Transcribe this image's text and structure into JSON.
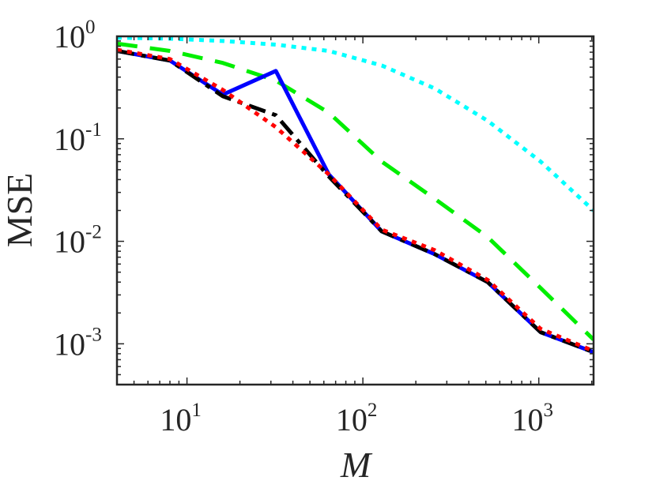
{
  "chart_data": {
    "type": "line",
    "title": "",
    "xlabel": "M",
    "ylabel": "MSE",
    "xscale": "log",
    "yscale": "log",
    "xlim": [
      4,
      2048
    ],
    "ylim": [
      0.0004,
      1.0
    ],
    "grid": false,
    "legend": "none",
    "x_ticks": [
      {
        "value": 10,
        "base": "10",
        "exp": "1"
      },
      {
        "value": 100,
        "base": "10",
        "exp": "2"
      },
      {
        "value": 1000,
        "base": "10",
        "exp": "3"
      }
    ],
    "y_ticks": [
      {
        "value": 1,
        "base": "10",
        "exp": "0"
      },
      {
        "value": 0.1,
        "base": "10",
        "exp": "-1"
      },
      {
        "value": 0.01,
        "base": "10",
        "exp": "-2"
      },
      {
        "value": 0.001,
        "base": "10",
        "exp": "-3"
      }
    ],
    "series": [
      {
        "name": "cyan-dotted",
        "color": "#00ffff",
        "style": "dotted",
        "x": [
          4,
          8,
          16,
          32,
          64,
          128,
          256,
          512,
          1024,
          2048
        ],
        "y": [
          0.97,
          0.95,
          0.9,
          0.83,
          0.72,
          0.52,
          0.31,
          0.15,
          0.06,
          0.02
        ]
      },
      {
        "name": "green-dashed",
        "color": "#00ee00",
        "style": "dashed",
        "x": [
          4,
          8,
          16,
          32,
          64,
          128,
          256,
          512,
          1024,
          2048
        ],
        "y": [
          0.85,
          0.72,
          0.55,
          0.37,
          0.18,
          0.06,
          0.026,
          0.011,
          0.0035,
          0.0011
        ]
      },
      {
        "name": "blue-solid",
        "color": "#0000ff",
        "style": "solid",
        "x": [
          4,
          8,
          16,
          32,
          64,
          128,
          256,
          512,
          1024,
          2048
        ],
        "y": [
          0.72,
          0.58,
          0.27,
          0.46,
          0.045,
          0.0125,
          0.0075,
          0.004,
          0.0013,
          0.00083
        ]
      },
      {
        "name": "black-dashdot",
        "color": "#000000",
        "style": "dashdot",
        "x": [
          4,
          8,
          16,
          32,
          64,
          128,
          256,
          512,
          1024,
          2048
        ],
        "y": [
          0.72,
          0.58,
          0.26,
          0.17,
          0.043,
          0.0125,
          0.0075,
          0.004,
          0.0013,
          0.00083
        ]
      },
      {
        "name": "red-dotted",
        "color": "#ff0000",
        "style": "dotted",
        "x": [
          4,
          8,
          16,
          32,
          64,
          128,
          256,
          512,
          1024,
          2048
        ],
        "y": [
          0.74,
          0.6,
          0.3,
          0.13,
          0.045,
          0.013,
          0.0082,
          0.0042,
          0.0014,
          0.00085
        ]
      }
    ]
  }
}
